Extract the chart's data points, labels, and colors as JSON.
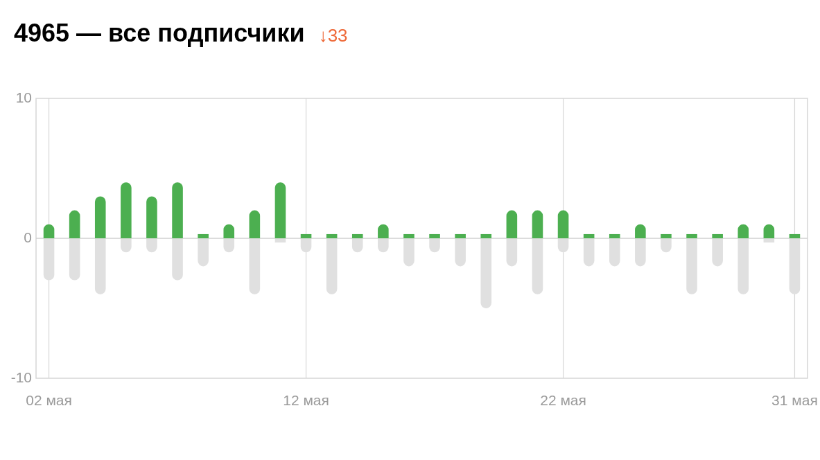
{
  "chart_data": {
    "type": "bar",
    "title": "4965 — все подписчики",
    "subtitle": "↓33",
    "stacked": true,
    "grid": "x",
    "categories": [
      "02 мая",
      null,
      null,
      null,
      null,
      null,
      null,
      null,
      null,
      null,
      "12 мая",
      null,
      null,
      null,
      null,
      null,
      null,
      null,
      null,
      null,
      "22 мая",
      null,
      null,
      null,
      null,
      null,
      null,
      null,
      null,
      "31 мая"
    ],
    "series": [
      {
        "color": "#4caf50",
        "values": [
          1,
          2,
          3,
          4,
          3,
          4,
          0.3,
          1,
          2,
          4,
          0.3,
          0.3,
          0.3,
          1,
          0.3,
          0.3,
          0.3,
          0.3,
          2,
          2,
          2,
          0.3,
          0.3,
          1,
          0.3,
          0.3,
          0.3,
          1,
          1,
          0.3
        ]
      },
      {
        "color": "#e0e0e0",
        "values": [
          -3,
          -3,
          -4,
          -1,
          -1,
          -3,
          -2,
          -1,
          -4,
          -0.3,
          -1,
          -4,
          -1,
          -1,
          -2,
          -1,
          -2,
          -5,
          -2,
          -4,
          -1,
          -2,
          -2,
          -2,
          -1,
          -4,
          -2,
          -4,
          -0.3,
          -4
        ]
      }
    ],
    "ylim": [
      -10,
      10
    ],
    "yticks": [
      -10,
      0,
      10
    ]
  }
}
